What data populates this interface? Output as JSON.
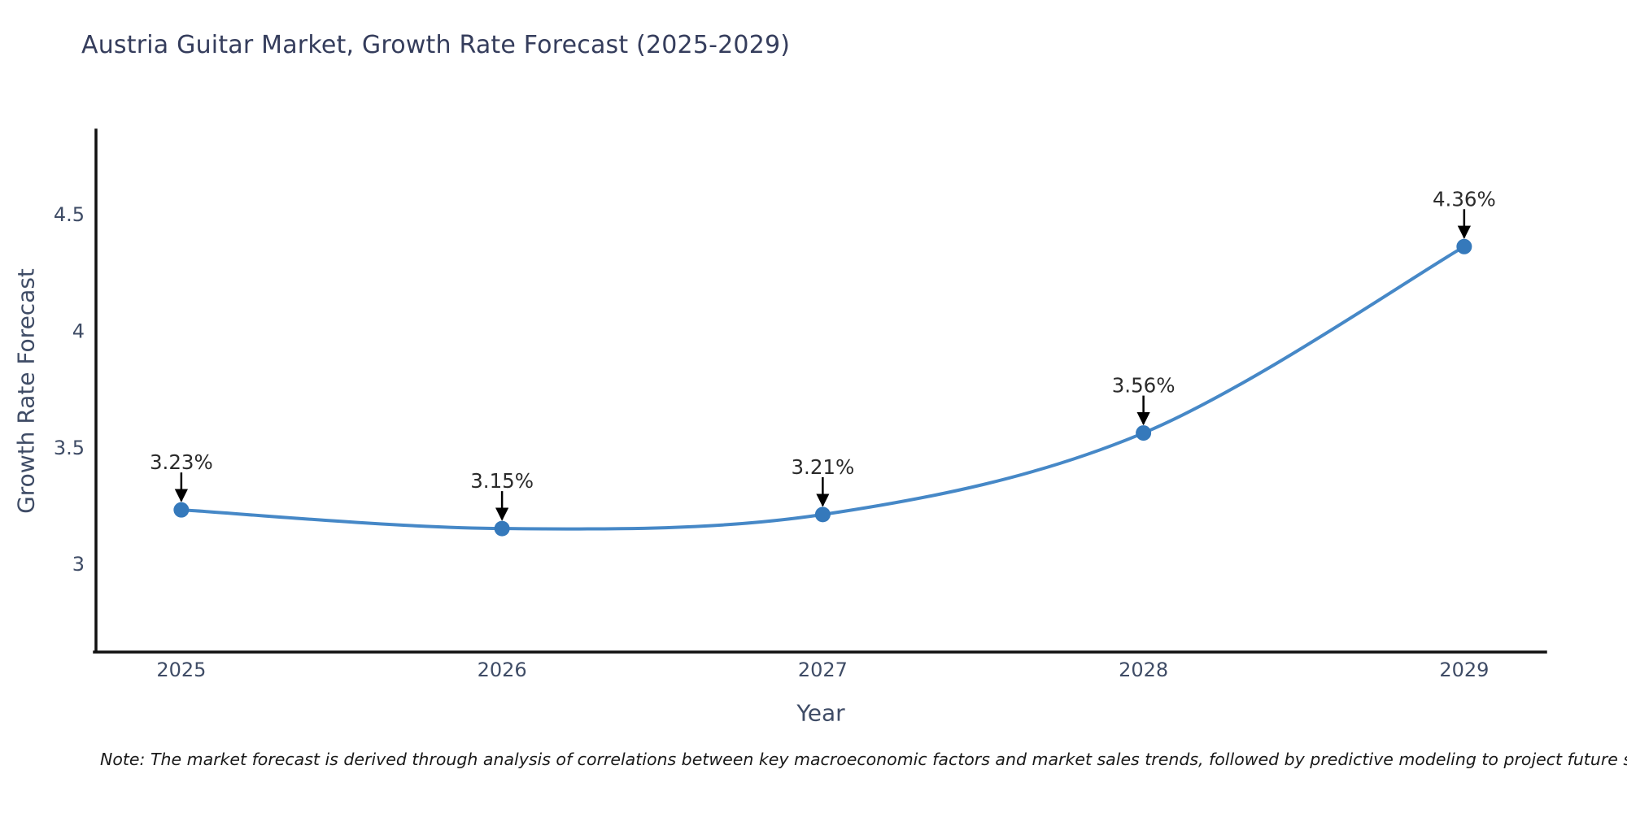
{
  "title": "Austria Guitar Market, Growth Rate Forecast (2025-2029)",
  "note": "Note: The market forecast is derived through analysis of correlations between key macroeconomic factors and market sales trends, followed by predictive modeling to project future sales",
  "chart_data": {
    "type": "line",
    "title": "Austria Guitar Market, Growth Rate Forecast (2025-2029)",
    "xlabel": "Year",
    "ylabel": "Growth Rate Forecast",
    "x": [
      2025,
      2026,
      2027,
      2028,
      2029
    ],
    "values": [
      3.23,
      3.15,
      3.21,
      3.56,
      4.36
    ],
    "point_labels": [
      "3.23%",
      "3.15%",
      "3.21%",
      "3.56%",
      "4.36%"
    ],
    "xticks": [
      "2025",
      "2026",
      "2027",
      "2028",
      "2029"
    ],
    "yticks": [
      3,
      3.5,
      4,
      4.5
    ],
    "ytick_labels": [
      "3",
      "3.5",
      "4",
      "4.5"
    ],
    "xlim": [
      2024.734,
      2029.254
    ],
    "ylim": [
      2.62,
      4.86
    ],
    "grid": false,
    "legend": false,
    "smooth_curve": true,
    "annotation_style": "label-above-with-down-arrow",
    "colors": {
      "line": "#4688c7",
      "marker": "#3579bb",
      "annotation_text": "#2b2b2b",
      "annotation_arrow": "#000000",
      "axis_line": "#111111",
      "tick_text": "#3f4c66",
      "title_text": "#353d5c",
      "note_text": "#1a1a1a",
      "background": "#ffffff"
    }
  }
}
